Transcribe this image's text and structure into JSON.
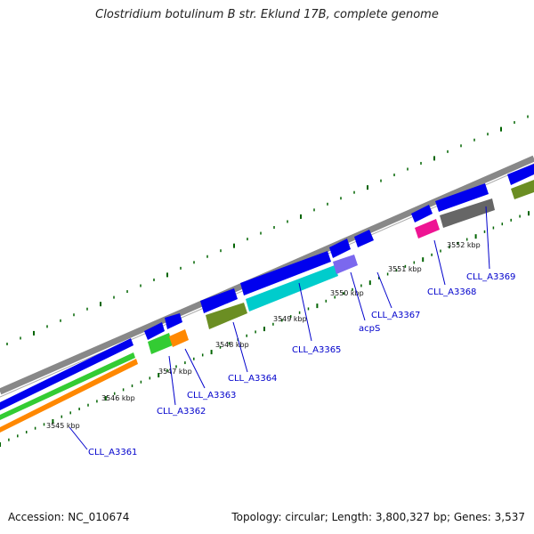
{
  "title": "Clostridium botulinum B str. Eklund 17B, complete genome",
  "accession_text": "Accession: NC_010674",
  "summary_text": "Topology: circular; Length: 3,800,327 bp; Genes: 3,537",
  "colors": {
    "backbone": "#888888",
    "cds": "#0000ee",
    "trna": "#33cc33",
    "rrna": "#ff8800",
    "olive": "#6b8e23",
    "cyan": "#00cccc",
    "purple": "#7b68ee",
    "magenta": "#ee1493",
    "gray": "#666666",
    "tick": "#006400",
    "label": "#0000cc"
  },
  "ticks": {
    "labels": [
      "3545 kbp",
      "3546 kbp",
      "3547 kbp",
      "3548 kbp",
      "3549 kbp",
      "3550 kbp",
      "3551 kbp",
      "3552 kbp"
    ]
  },
  "genes": [
    {
      "name": "CLL_A3361"
    },
    {
      "name": "CLL_A3362"
    },
    {
      "name": "CLL_A3363"
    },
    {
      "name": "CLL_A3364"
    },
    {
      "name": "CLL_A3365"
    },
    {
      "name": "acpS"
    },
    {
      "name": "CLL_A3367"
    },
    {
      "name": "CLL_A3368"
    },
    {
      "name": "CLL_A3369"
    }
  ]
}
